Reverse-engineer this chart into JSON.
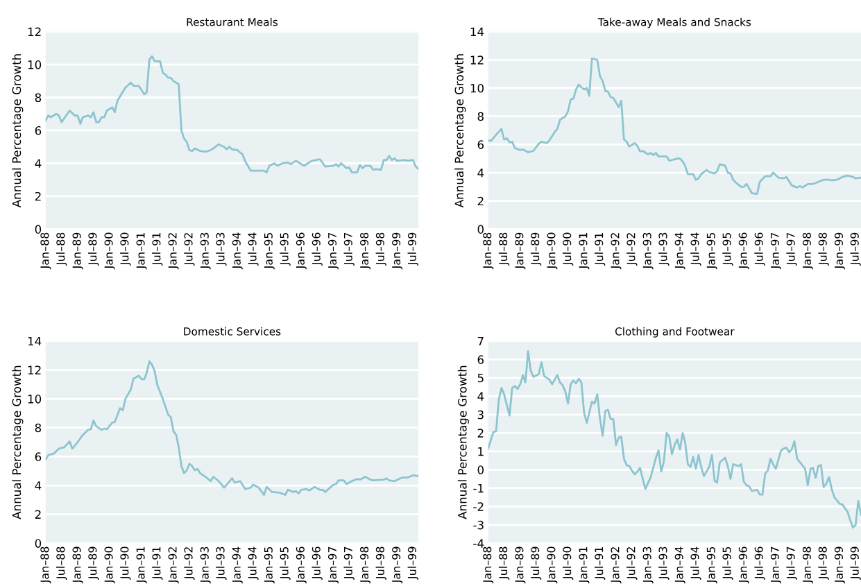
{
  "chart_data": [
    {
      "type": "line",
      "title": "Restaurant Meals",
      "ylabel": "Annual Percentage Growth",
      "ylim": [
        0,
        12
      ],
      "yticks": [
        0,
        2,
        4,
        6,
        8,
        10,
        12
      ],
      "xlim": [
        "1988-01",
        "1999-09"
      ],
      "xticks": [
        {
          "value": "1988-01",
          "label": "Jan–88"
        },
        {
          "value": "1988-07",
          "label": "Jul–88"
        },
        {
          "value": "1989-01",
          "label": "Jan–89"
        },
        {
          "value": "1989-07",
          "label": "Jul–89"
        },
        {
          "value": "1990-01",
          "label": "Jan–90"
        },
        {
          "value": "1990-07",
          "label": "Jul–90"
        },
        {
          "value": "1991-01",
          "label": "Jan–91"
        },
        {
          "value": "1991-07",
          "label": "Jul–91"
        },
        {
          "value": "1992-01",
          "label": "Jan–92"
        },
        {
          "value": "1992-07",
          "label": "Jul–92"
        },
        {
          "value": "1993-01",
          "label": "Jan–93"
        },
        {
          "value": "1993-07",
          "label": "Jul–93"
        },
        {
          "value": "1994-01",
          "label": "Jan–94"
        },
        {
          "value": "1994-07",
          "label": "Jul–94"
        },
        {
          "value": "1995-01",
          "label": "Jan–95"
        },
        {
          "value": "1995-07",
          "label": "Jul–95"
        },
        {
          "value": "1996-01",
          "label": "Jan–96"
        },
        {
          "value": "1996-07",
          "label": "Jul–96"
        },
        {
          "value": "1997-01",
          "label": "Jan–97"
        },
        {
          "value": "1997-07",
          "label": "Jul–97"
        },
        {
          "value": "1998-01",
          "label": "Jan–98"
        },
        {
          "value": "1998-07",
          "label": "Jul–98"
        },
        {
          "value": "1999-01",
          "label": "Jan–99"
        },
        {
          "value": "1999-07",
          "label": "Jul–99"
        }
      ],
      "grid": "y",
      "line_style": "solid",
      "series": [
        {
          "color": "#8cc4d0",
          "x": [
            "1988-01",
            "1988-02",
            "1988-03",
            "1988-05",
            "1988-06",
            "1988-07",
            "1988-10",
            "1988-12",
            "1989-01",
            "1989-02",
            "1989-03",
            "1989-05",
            "1989-06",
            "1989-07",
            "1989-08",
            "1989-09",
            "1989-10",
            "1989-11",
            "1989-12",
            "1990-02",
            "1990-03",
            "1990-04",
            "1990-07",
            "1990-09",
            "1990-10",
            "1990-12",
            "1991-02",
            "1991-03",
            "1991-04",
            "1991-05",
            "1991-06",
            "1991-08",
            "1991-09",
            "1991-10",
            "1991-11",
            "1991-12",
            "1992-01",
            "1992-02",
            "1992-03",
            "1992-04",
            "1992-05",
            "1992-06",
            "1992-07",
            "1992-08",
            "1992-09",
            "1992-11",
            "1993-01",
            "1993-03",
            "1993-04",
            "1993-06",
            "1993-08",
            "1993-09",
            "1993-10",
            "1993-11",
            "1994-01",
            "1994-02",
            "1994-03",
            "1994-04",
            "1994-05",
            "1994-06",
            "1994-11",
            "1994-12",
            "1995-01",
            "1995-03",
            "1995-04",
            "1995-06",
            "1995-08",
            "1995-09",
            "1995-11",
            "1996-02",
            "1996-05",
            "1996-08",
            "1996-10",
            "1997-01",
            "1997-02",
            "1997-03",
            "1997-04",
            "1997-06",
            "1997-07",
            "1997-08",
            "1997-10",
            "1997-11",
            "1997-12",
            "1998-01",
            "1998-03",
            "1998-04",
            "1998-05",
            "1998-07",
            "1998-08",
            "1998-09",
            "1998-10",
            "1998-11",
            "1998-12",
            "1999-01",
            "1999-04",
            "1999-05",
            "1999-07",
            "1999-08",
            "1999-09"
          ],
          "values": [
            6.6,
            6.9,
            6.8,
            7.0,
            6.9,
            6.5,
            7.2,
            6.9,
            6.9,
            6.4,
            6.8,
            6.9,
            6.8,
            7.1,
            6.5,
            6.5,
            6.8,
            6.8,
            7.2,
            7.4,
            7.1,
            7.8,
            8.6,
            8.9,
            8.7,
            8.7,
            8.2,
            8.3,
            10.3,
            10.5,
            10.2,
            10.2,
            9.5,
            9.4,
            9.2,
            9.2,
            9.0,
            8.9,
            8.8,
            6.0,
            5.5,
            5.3,
            4.8,
            4.75,
            4.9,
            4.75,
            4.7,
            4.8,
            4.9,
            5.15,
            5.0,
            4.85,
            5.0,
            4.85,
            4.8,
            4.65,
            4.55,
            4.1,
            3.85,
            3.55,
            3.55,
            3.45,
            3.85,
            4.0,
            3.85,
            4.0,
            4.05,
            3.95,
            4.15,
            3.85,
            4.15,
            4.25,
            3.8,
            3.85,
            3.95,
            3.8,
            4.0,
            3.7,
            3.75,
            3.45,
            3.45,
            3.9,
            3.7,
            3.85,
            3.85,
            3.6,
            3.65,
            3.6,
            4.2,
            4.2,
            4.45,
            4.2,
            4.3,
            4.15,
            4.2,
            4.15,
            4.2,
            3.8,
            3.65
          ]
        }
      ]
    },
    {
      "type": "line",
      "title": "Take-away Meals and Snacks",
      "ylabel": "Annual Percentage Growth",
      "ylim": [
        0,
        14
      ],
      "yticks": [
        0,
        2,
        4,
        6,
        8,
        10,
        12,
        14
      ],
      "xlim": [
        "1988-01",
        "1999-09"
      ],
      "xticks": [
        {
          "value": "1988-01",
          "label": "Jan–88"
        },
        {
          "value": "1988-07",
          "label": "Jul–88"
        },
        {
          "value": "1989-01",
          "label": "Jan–89"
        },
        {
          "value": "1989-07",
          "label": "Jul–89"
        },
        {
          "value": "1990-01",
          "label": "Jan–90"
        },
        {
          "value": "1990-07",
          "label": "Jul–90"
        },
        {
          "value": "1991-01",
          "label": "Jan–91"
        },
        {
          "value": "1991-07",
          "label": "Jul–91"
        },
        {
          "value": "1992-01",
          "label": "Jan–92"
        },
        {
          "value": "1992-07",
          "label": "Jul–92"
        },
        {
          "value": "1993-01",
          "label": "Jan–93"
        },
        {
          "value": "1993-07",
          "label": "Jul–93"
        },
        {
          "value": "1994-01",
          "label": "Jan–94"
        },
        {
          "value": "1994-07",
          "label": "Jul–94"
        },
        {
          "value": "1995-01",
          "label": "Jan–95"
        },
        {
          "value": "1995-07",
          "label": "Jul–95"
        },
        {
          "value": "1996-01",
          "label": "Jan–96"
        },
        {
          "value": "1996-07",
          "label": "Jul–96"
        },
        {
          "value": "1997-01",
          "label": "Jan–97"
        },
        {
          "value": "1997-07",
          "label": "Jul–97"
        },
        {
          "value": "1998-01",
          "label": "Jan–98"
        },
        {
          "value": "1998-07",
          "label": "Jul–98"
        },
        {
          "value": "1999-01",
          "label": "Jan–99"
        },
        {
          "value": "1999-07",
          "label": "Jul–99"
        }
      ],
      "grid": "y",
      "line_style": "solid",
      "series": [
        {
          "color": "#8cc4d0",
          "x": [
            "1988-01",
            "1988-02",
            "1988-04",
            "1988-06",
            "1988-07",
            "1988-08",
            "1988-09",
            "1988-10",
            "1988-11",
            "1989-01",
            "1989-02",
            "1989-04",
            "1989-06",
            "1989-08",
            "1989-09",
            "1989-11",
            "1989-12",
            "1990-02",
            "1990-03",
            "1990-04",
            "1990-06",
            "1990-07",
            "1990-08",
            "1990-09",
            "1990-10",
            "1990-11",
            "1990-12",
            "1991-01",
            "1991-02",
            "1991-03",
            "1991-04",
            "1991-06",
            "1991-07",
            "1991-08",
            "1991-09",
            "1991-10",
            "1991-11",
            "1991-12",
            "1992-02",
            "1992-03",
            "1992-04",
            "1992-05",
            "1992-06",
            "1992-08",
            "1992-09",
            "1992-10",
            "1992-11",
            "1993-01",
            "1993-02",
            "1993-03",
            "1993-04",
            "1993-05",
            "1993-08",
            "1993-09",
            "1993-12",
            "1994-01",
            "1994-02",
            "1994-03",
            "1994-04",
            "1994-06",
            "1994-07",
            "1994-08",
            "1994-09",
            "1994-11",
            "1994-12",
            "1995-02",
            "1995-03",
            "1995-04",
            "1995-06",
            "1995-07",
            "1995-08",
            "1995-09",
            "1995-10",
            "1995-12",
            "1996-01",
            "1996-02",
            "1996-03",
            "1996-04",
            "1996-06",
            "1996-07",
            "1996-09",
            "1996-11",
            "1996-12",
            "1997-02",
            "1997-04",
            "1997-05",
            "1997-07",
            "1997-09",
            "1997-10",
            "1997-11",
            "1998-01",
            "1998-03",
            "1998-05",
            "1998-07",
            "1998-09",
            "1998-10",
            "1998-12",
            "1999-02",
            "1999-04",
            "1999-06",
            "1999-07",
            "1999-09"
          ],
          "values": [
            6.3,
            6.25,
            6.7,
            7.1,
            6.35,
            6.45,
            6.15,
            6.2,
            5.75,
            5.6,
            5.65,
            5.45,
            5.55,
            6.05,
            6.2,
            6.1,
            6.3,
            6.9,
            7.1,
            7.75,
            8.0,
            8.35,
            9.2,
            9.25,
            9.9,
            10.25,
            10.05,
            9.9,
            10.0,
            9.45,
            12.1,
            12.0,
            10.85,
            10.5,
            9.8,
            9.75,
            9.35,
            9.3,
            8.65,
            9.1,
            6.35,
            6.2,
            5.85,
            6.1,
            5.9,
            5.5,
            5.55,
            5.3,
            5.4,
            5.25,
            5.4,
            5.15,
            5.15,
            4.85,
            5.0,
            5.0,
            4.8,
            4.5,
            3.9,
            3.9,
            3.5,
            3.6,
            3.9,
            4.2,
            4.05,
            3.95,
            4.1,
            4.6,
            4.5,
            4.0,
            3.95,
            3.5,
            3.3,
            3.0,
            3.0,
            3.2,
            2.9,
            2.55,
            2.5,
            3.35,
            3.75,
            3.75,
            4.0,
            3.65,
            3.6,
            3.7,
            3.1,
            2.95,
            3.05,
            2.95,
            3.2,
            3.2,
            3.35,
            3.5,
            3.5,
            3.45,
            3.5,
            3.7,
            3.8,
            3.7,
            3.6,
            3.65
          ]
        }
      ]
    },
    {
      "type": "line",
      "title": "Domestic Services",
      "ylabel": "Annual Percentage Growth",
      "ylim": [
        0,
        14
      ],
      "yticks": [
        0,
        2,
        4,
        6,
        8,
        10,
        12,
        14
      ],
      "xlim": [
        "1988-01",
        "1999-09"
      ],
      "xticks": [
        {
          "value": "1988-01",
          "label": "Jan–88"
        },
        {
          "value": "1988-07",
          "label": "Jul–88"
        },
        {
          "value": "1989-01",
          "label": "Jan–89"
        },
        {
          "value": "1989-07",
          "label": "Jul–89"
        },
        {
          "value": "1990-01",
          "label": "Jan–90"
        },
        {
          "value": "1990-07",
          "label": "Jul–90"
        },
        {
          "value": "1991-01",
          "label": "Jan–91"
        },
        {
          "value": "1991-07",
          "label": "Jul–91"
        },
        {
          "value": "1992-01",
          "label": "Jan–92"
        },
        {
          "value": "1992-07",
          "label": "Jul–92"
        },
        {
          "value": "1993-01",
          "label": "Jan–93"
        },
        {
          "value": "1993-07",
          "label": "Jul–93"
        },
        {
          "value": "1994-01",
          "label": "Jan–94"
        },
        {
          "value": "1994-07",
          "label": "Jul–94"
        },
        {
          "value": "1995-01",
          "label": "Jan–95"
        },
        {
          "value": "1995-07",
          "label": "Jul–95"
        },
        {
          "value": "1996-01",
          "label": "Jan–96"
        },
        {
          "value": "1996-07",
          "label": "Jul–96"
        },
        {
          "value": "1997-01",
          "label": "Jan–97"
        },
        {
          "value": "1997-07",
          "label": "Jul–97"
        },
        {
          "value": "1998-01",
          "label": "Jan–98"
        },
        {
          "value": "1998-07",
          "label": "Jul–98"
        },
        {
          "value": "1999-01",
          "label": "Jan–99"
        },
        {
          "value": "1999-07",
          "label": "Jul–99"
        }
      ],
      "grid": "y",
      "line_style": "solid",
      "series": [
        {
          "color": "#8cc4d0",
          "x": [
            "1988-01",
            "1988-02",
            "1988-04",
            "1988-06",
            "1988-08",
            "1988-10",
            "1988-11",
            "1989-01",
            "1989-03",
            "1989-05",
            "1989-06",
            "1989-07",
            "1989-08",
            "1989-10",
            "1989-11",
            "1989-12",
            "1990-02",
            "1990-03",
            "1990-05",
            "1990-06",
            "1990-07",
            "1990-09",
            "1990-10",
            "1990-12",
            "1991-01",
            "1991-02",
            "1991-03",
            "1991-04",
            "1991-05",
            "1991-06",
            "1991-07",
            "1991-09",
            "1991-11",
            "1991-12",
            "1992-01",
            "1992-02",
            "1992-03",
            "1992-04",
            "1992-05",
            "1992-06",
            "1992-07",
            "1992-08",
            "1992-09",
            "1992-10",
            "1992-11",
            "1993-01",
            "1993-03",
            "1993-04",
            "1993-06",
            "1993-08",
            "1993-09",
            "1993-11",
            "1993-12",
            "1994-02",
            "1994-04",
            "1994-06",
            "1994-07",
            "1994-09",
            "1994-11",
            "1994-12",
            "1995-02",
            "1995-05",
            "1995-07",
            "1995-08",
            "1995-10",
            "1995-11",
            "1995-12",
            "1996-01",
            "1996-03",
            "1996-04",
            "1996-06",
            "1996-08",
            "1996-09",
            "1996-10",
            "1997-01",
            "1997-02",
            "1997-03",
            "1997-05",
            "1997-06",
            "1997-08",
            "1997-10",
            "1997-11",
            "1998-01",
            "1998-03",
            "1998-04",
            "1998-08",
            "1998-09",
            "1998-10",
            "1998-12",
            "1999-03",
            "1999-05",
            "1999-07",
            "1999-09"
          ],
          "values": [
            5.8,
            6.1,
            6.2,
            6.55,
            6.65,
            7.05,
            6.55,
            7.0,
            7.5,
            7.85,
            7.9,
            8.5,
            8.1,
            7.85,
            7.95,
            7.9,
            8.35,
            8.4,
            9.35,
            9.2,
            10.0,
            10.65,
            11.4,
            11.6,
            11.35,
            11.35,
            11.8,
            12.6,
            12.35,
            11.9,
            10.95,
            10.0,
            8.9,
            8.75,
            7.75,
            7.5,
            6.65,
            5.35,
            4.85,
            5.05,
            5.5,
            5.35,
            5.05,
            5.15,
            4.85,
            4.6,
            4.3,
            4.6,
            4.3,
            3.85,
            4.05,
            4.5,
            4.2,
            4.3,
            3.75,
            3.85,
            4.05,
            3.85,
            3.35,
            3.9,
            3.55,
            3.5,
            3.35,
            3.7,
            3.55,
            3.6,
            3.45,
            3.7,
            3.75,
            3.65,
            3.9,
            3.7,
            3.7,
            3.55,
            4.05,
            4.1,
            4.35,
            4.35,
            4.1,
            4.3,
            4.45,
            4.4,
            4.6,
            4.4,
            4.35,
            4.4,
            4.5,
            4.35,
            4.3,
            4.55,
            4.55,
            4.7,
            4.65
          ]
        }
      ]
    },
    {
      "type": "line",
      "title": "Clothing and Footwear",
      "ylabel": "Annual Percentage Growth",
      "ylim": [
        -4,
        7
      ],
      "yticks": [
        -4,
        -3,
        -2,
        -1,
        0,
        1,
        2,
        3,
        4,
        5,
        6,
        7
      ],
      "xlim": [
        "1988-01",
        "1999-09"
      ],
      "xticks": [
        {
          "value": "1988-01",
          "label": "Jan–88"
        },
        {
          "value": "1988-07",
          "label": "Jul–88"
        },
        {
          "value": "1989-01",
          "label": "Jan–89"
        },
        {
          "value": "1989-07",
          "label": "Jul–89"
        },
        {
          "value": "1990-01",
          "label": "Jan–90"
        },
        {
          "value": "1990-07",
          "label": "Jul–90"
        },
        {
          "value": "1991-01",
          "label": "Jan–91"
        },
        {
          "value": "1991-07",
          "label": "Jul–91"
        },
        {
          "value": "1992-01",
          "label": "Jan–92"
        },
        {
          "value": "1992-07",
          "label": "Jul–92"
        },
        {
          "value": "1993-01",
          "label": "Jan–93"
        },
        {
          "value": "1993-07",
          "label": "Jul–93"
        },
        {
          "value": "1994-01",
          "label": "Jan–94"
        },
        {
          "value": "1994-07",
          "label": "Jul–94"
        },
        {
          "value": "1995-01",
          "label": "Jan–95"
        },
        {
          "value": "1995-07",
          "label": "Jul–95"
        },
        {
          "value": "1996-01",
          "label": "Jan–96"
        },
        {
          "value": "1996-07",
          "label": "Jul–96"
        },
        {
          "value": "1997-01",
          "label": "Jan–97"
        },
        {
          "value": "1997-07",
          "label": "Jul–97"
        },
        {
          "value": "1998-01",
          "label": "Jan–98"
        },
        {
          "value": "1998-07",
          "label": "Jul–98"
        },
        {
          "value": "1999-01",
          "label": "Jan–99"
        },
        {
          "value": "1999-07",
          "label": "Jul–99"
        }
      ],
      "grid": "y",
      "line_style": "solid",
      "series": [
        {
          "color": "#8cc4d0",
          "x": [
            "1988-01",
            "1988-03",
            "1988-04",
            "1988-05",
            "1988-06",
            "1988-07",
            "1988-09",
            "1988-10",
            "1988-11",
            "1988-12",
            "1989-01",
            "1989-02",
            "1989-03",
            "1989-04",
            "1989-05",
            "1989-06",
            "1989-08",
            "1989-09",
            "1989-10",
            "1989-12",
            "1990-01",
            "1990-03",
            "1990-04",
            "1990-05",
            "1990-06",
            "1990-07",
            "1990-08",
            "1990-09",
            "1990-10",
            "1990-11",
            "1990-12",
            "1991-01",
            "1991-02",
            "1991-04",
            "1991-05",
            "1991-06",
            "1991-07",
            "1991-08",
            "1991-09",
            "1991-10",
            "1991-11",
            "1991-12",
            "1992-01",
            "1992-02",
            "1992-03",
            "1992-04",
            "1992-05",
            "1992-06",
            "1992-07",
            "1992-08",
            "1992-09",
            "1992-10",
            "1992-12",
            "1993-02",
            "1993-04",
            "1993-05",
            "1993-06",
            "1993-07",
            "1993-08",
            "1993-09",
            "1993-10",
            "1993-11",
            "1993-12",
            "1994-01",
            "1994-02",
            "1994-03",
            "1994-04",
            "1994-05",
            "1994-06",
            "1994-07",
            "1994-08",
            "1994-09",
            "1994-10",
            "1994-12",
            "1995-01",
            "1995-02",
            "1995-03",
            "1995-04",
            "1995-06",
            "1995-07",
            "1995-08",
            "1995-09",
            "1995-11",
            "1995-12",
            "1996-01",
            "1996-02",
            "1996-03",
            "1996-04",
            "1996-06",
            "1996-07",
            "1996-08",
            "1996-09",
            "1996-10",
            "1996-11",
            "1996-12",
            "1997-01",
            "1997-03",
            "1997-04",
            "1997-05",
            "1997-06",
            "1997-07",
            "1997-08",
            "1997-09",
            "1997-12",
            "1998-01",
            "1998-02",
            "1998-03",
            "1998-04",
            "1998-05",
            "1998-06",
            "1998-07",
            "1998-08",
            "1998-09",
            "1998-10",
            "1998-11",
            "1999-01",
            "1999-02",
            "1999-04",
            "1999-05",
            "1999-06",
            "1999-07",
            "1999-08",
            "1999-09"
          ],
          "values": [
            1.15,
            2.05,
            2.1,
            3.8,
            4.45,
            4.1,
            2.95,
            4.45,
            4.55,
            4.4,
            4.65,
            5.15,
            4.75,
            6.45,
            5.4,
            5.05,
            5.2,
            5.85,
            5.1,
            4.9,
            4.65,
            5.15,
            4.75,
            4.6,
            4.25,
            3.6,
            4.65,
            4.85,
            4.7,
            4.95,
            4.75,
            3.1,
            2.55,
            3.7,
            3.6,
            4.1,
            2.8,
            1.85,
            3.2,
            3.25,
            2.75,
            2.75,
            1.35,
            1.75,
            1.8,
            0.6,
            0.25,
            0.2,
            -0.05,
            -0.25,
            -0.1,
            0.1,
            -1.05,
            -0.4,
            0.65,
            1.05,
            -0.1,
            0.45,
            2.0,
            1.8,
            0.85,
            1.35,
            1.65,
            1.1,
            2.0,
            1.5,
            0.3,
            0.15,
            0.7,
            0.05,
            0.8,
            0.15,
            -0.35,
            0.15,
            0.8,
            -0.6,
            -0.7,
            0.4,
            0.65,
            0.2,
            -0.5,
            0.3,
            0.2,
            0.3,
            -0.65,
            -0.85,
            -0.9,
            -1.15,
            -1.1,
            -1.35,
            -1.35,
            -0.2,
            -0.05,
            0.6,
            0.3,
            0.05,
            1.05,
            1.15,
            1.2,
            0.95,
            1.1,
            1.55,
            0.6,
            0.05,
            -0.85,
            0.05,
            0.1,
            -0.45,
            0.2,
            0.25,
            -0.95,
            -0.75,
            -0.4,
            -1.05,
            -1.5,
            -1.85,
            -1.9,
            -2.3,
            -2.75,
            -3.15,
            -3.0,
            -1.7,
            -2.45
          ]
        }
      ]
    }
  ]
}
